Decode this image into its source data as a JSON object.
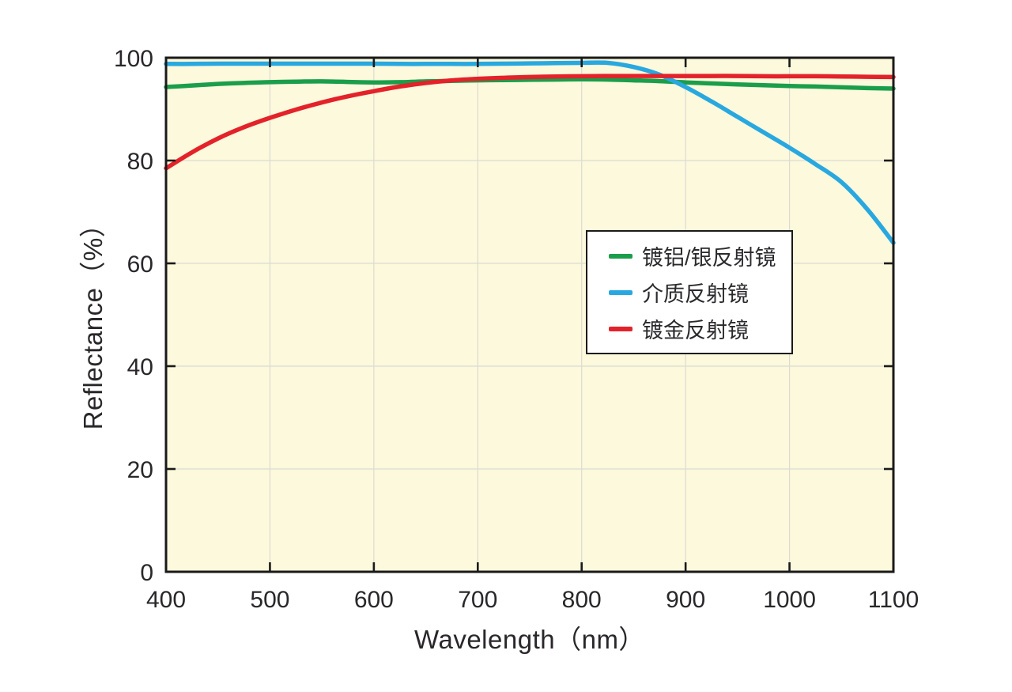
{
  "chart_data": {
    "type": "line",
    "title": "",
    "xlabel": "Wavelength（nm）",
    "ylabel": "Reflectance（%）",
    "xlim": [
      400,
      1100
    ],
    "ylim": [
      0,
      100
    ],
    "x_ticks": [
      400,
      500,
      600,
      700,
      800,
      900,
      1000,
      1100
    ],
    "y_ticks": [
      0,
      20,
      40,
      60,
      80,
      100
    ],
    "grid": true,
    "legend_position": "inside-upper-right",
    "colors": {
      "plot_background": "#FCF9DC",
      "grid": "#DBDBD3",
      "axis": "#1A1A1A",
      "tick_text": "#29272A"
    },
    "x": [
      400,
      425,
      450,
      475,
      500,
      525,
      550,
      575,
      600,
      625,
      650,
      675,
      700,
      725,
      750,
      775,
      800,
      825,
      850,
      875,
      900,
      925,
      950,
      975,
      1000,
      1025,
      1050,
      1075,
      1100
    ],
    "series": [
      {
        "name": "镀铝/银反射镜",
        "color": "#1B9E4B",
        "values": [
          94.3,
          94.6,
          94.9,
          95.1,
          95.25,
          95.35,
          95.4,
          95.3,
          95.2,
          95.25,
          95.4,
          95.5,
          95.6,
          95.65,
          95.7,
          95.75,
          95.8,
          95.75,
          95.6,
          95.45,
          95.2,
          95.0,
          94.8,
          94.65,
          94.5,
          94.4,
          94.25,
          94.1,
          94.0
        ]
      },
      {
        "name": "介质反射镜",
        "color": "#29A8E0",
        "values": [
          98.8,
          98.8,
          98.85,
          98.85,
          98.85,
          98.85,
          98.85,
          98.85,
          98.85,
          98.8,
          98.8,
          98.8,
          98.8,
          98.85,
          98.9,
          98.95,
          99.0,
          99.0,
          98.2,
          96.7,
          94.3,
          91.5,
          88.5,
          85.5,
          82.5,
          79.3,
          75.8,
          70.5,
          64.0
        ]
      },
      {
        "name": "镀金反射镜",
        "color": "#E3222A",
        "values": [
          78.5,
          81.6,
          84.3,
          86.5,
          88.3,
          89.9,
          91.3,
          92.5,
          93.5,
          94.4,
          95.1,
          95.6,
          95.9,
          96.1,
          96.25,
          96.35,
          96.4,
          96.45,
          96.45,
          96.45,
          96.45,
          96.45,
          96.45,
          96.4,
          96.4,
          96.4,
          96.35,
          96.3,
          96.25
        ]
      }
    ]
  },
  "legend": {
    "items": [
      {
        "label": "镀铝/银反射镜",
        "color": "#1B9E4B"
      },
      {
        "label": "介质反射镜",
        "color": "#29A8E0"
      },
      {
        "label": "镀金反射镜",
        "color": "#E3222A"
      }
    ]
  }
}
